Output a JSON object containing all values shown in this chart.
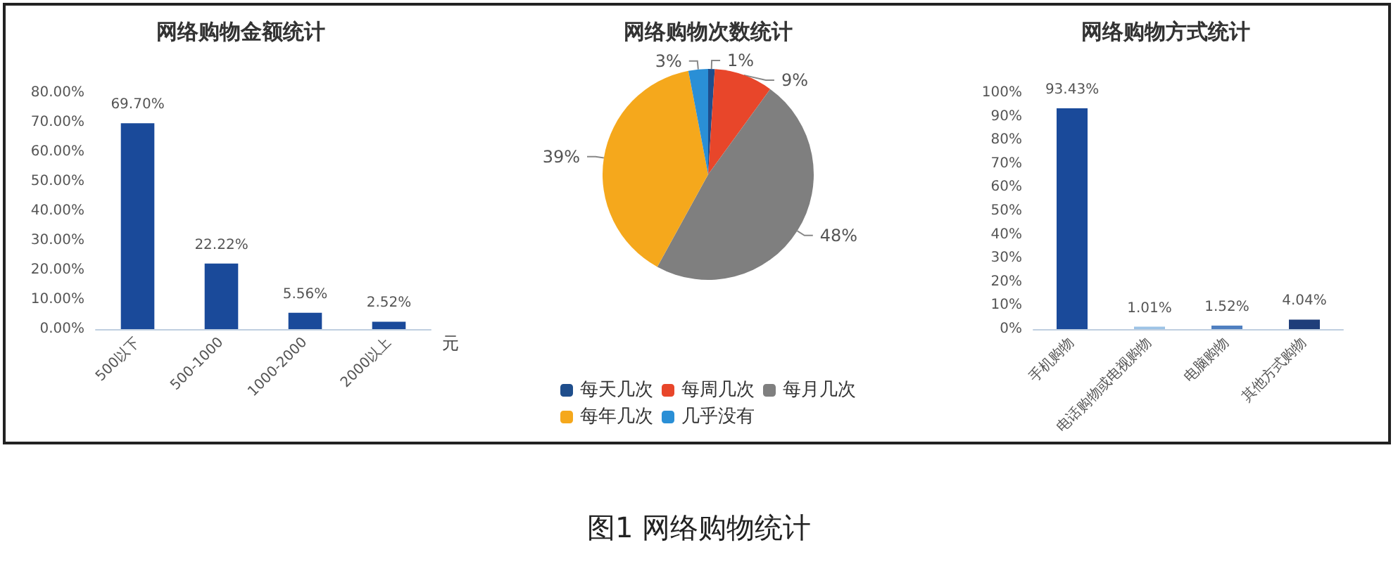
{
  "chart_data": [
    {
      "type": "bar",
      "title": "网络购物金额统计",
      "xlabel": "元",
      "categories": [
        "500以下",
        "500-1000",
        "1000-2000",
        "2000以上"
      ],
      "values": [
        69.7,
        22.22,
        5.56,
        2.52
      ],
      "color": "#1a4a9a",
      "value_labels": [
        "69.70%",
        "22.22%",
        "5.56%",
        "2.52%"
      ],
      "ylim": [
        0,
        80
      ],
      "yticks": [
        {
          "value": 0,
          "label": "0.00%"
        },
        {
          "value": 10,
          "label": "10.00%"
        },
        {
          "value": 20,
          "label": "20.00%"
        },
        {
          "value": 30,
          "label": "30.00%"
        },
        {
          "value": 40,
          "label": "40.00%"
        },
        {
          "value": 50,
          "label": "50.00%"
        },
        {
          "value": 60,
          "label": "60.00%"
        },
        {
          "value": 70,
          "label": "70.00%"
        },
        {
          "value": 80,
          "label": "80.00%"
        }
      ],
      "grid": false
    },
    {
      "type": "pie",
      "title": "网络购物次数统计",
      "categories": [
        "每天几次",
        "每周几次",
        "每月几次",
        "每年几次",
        "几乎没有"
      ],
      "values": [
        1,
        9,
        48,
        39,
        3
      ],
      "colors": [
        "#1f4e8c",
        "#e8462a",
        "#7f7f7f",
        "#f5a81c",
        "#2a8fd6"
      ],
      "value_labels": [
        "1%",
        "9%",
        "48%",
        "39%",
        "3%"
      ],
      "legend": "bottom",
      "annotations": [
        "图1  网络购物统计"
      ]
    },
    {
      "type": "bar",
      "title": "网络购物方式统计",
      "categories": [
        "手机购物",
        "电话购物或电视购物",
        "电脑购物",
        "其他方式购物"
      ],
      "values": [
        93.43,
        1.01,
        1.52,
        4.04
      ],
      "colors": [
        "#1a4a9a",
        "#9dc3e6",
        "#4f7fc0",
        "#1f3e7a"
      ],
      "value_labels": [
        "93.43%",
        "1.01%",
        "1.52%",
        "4.04%"
      ],
      "ylim": [
        0,
        100
      ],
      "yticks": [
        {
          "value": 0,
          "label": "0%"
        },
        {
          "value": 10,
          "label": "10%"
        },
        {
          "value": 20,
          "label": "20%"
        },
        {
          "value": 30,
          "label": "30%"
        },
        {
          "value": 40,
          "label": "40%"
        },
        {
          "value": 50,
          "label": "50%"
        },
        {
          "value": 60,
          "label": "60%"
        },
        {
          "value": 70,
          "label": "70%"
        },
        {
          "value": 80,
          "label": "80%"
        },
        {
          "value": 90,
          "label": "90%"
        },
        {
          "value": 100,
          "label": "100%"
        }
      ],
      "grid": false
    }
  ]
}
